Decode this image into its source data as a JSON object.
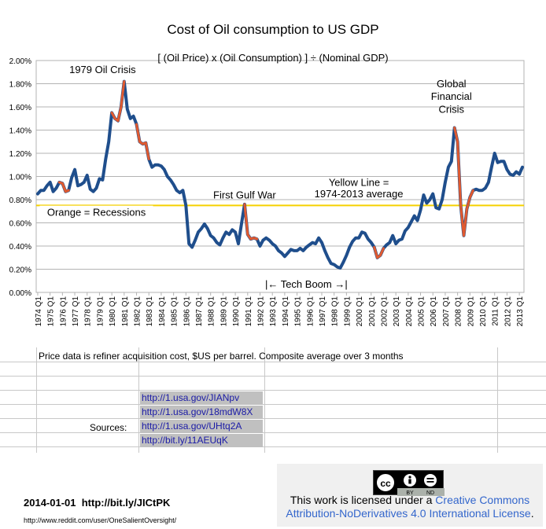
{
  "chart_data": {
    "type": "line",
    "title": "Cost of Oil consumption to US GDP",
    "subtitle": "[ (Oil Price) x (Oil Consumption) ] ÷ (Nominal GDP)",
    "xlabel": "",
    "ylabel": "",
    "ylim": [
      0,
      0.02
    ],
    "ytick_labels": [
      "0.00%",
      "0.20%",
      "0.40%",
      "0.60%",
      "0.80%",
      "1.00%",
      "1.20%",
      "1.40%",
      "1.60%",
      "1.80%",
      "2.00%"
    ],
    "xtick_labels": [
      "1974 Q1",
      "1975 Q1",
      "1976 Q1",
      "1977 Q1",
      "1978 Q1",
      "1979 Q1",
      "1980 Q1",
      "1981 Q1",
      "1982 Q1",
      "1983 Q1",
      "1984 Q1",
      "1985 Q1",
      "1986 Q1",
      "1987 Q1",
      "1988 Q1",
      "1989 Q1",
      "1990 Q1",
      "1991 Q1",
      "1992 Q1",
      "1993 Q1",
      "1994 Q1",
      "1995 Q1",
      "1996 Q1",
      "1997 Q1",
      "1998 Q1",
      "1999 Q1",
      "2000 Q1",
      "2001 Q1",
      "2002 Q1",
      "2003 Q1",
      "2004 Q1",
      "2005 Q1",
      "2006 Q1",
      "2007 Q1",
      "2008 Q1",
      "2009 Q1",
      "2010 Q1",
      "2011 Q1",
      "2012 Q1",
      "2013 Q1"
    ],
    "grid": true,
    "series": [
      {
        "values": [
          0.0085,
          0.0088,
          0.0088,
          0.0092,
          0.0095,
          0.0087,
          0.009,
          0.0095,
          0.0094,
          0.0087,
          0.0088,
          0.0099,
          0.0106,
          0.0092,
          0.0093,
          0.0095,
          0.0101,
          0.0089,
          0.0087,
          0.009,
          0.0098,
          0.0097,
          0.0115,
          0.013,
          0.0155,
          0.015,
          0.0148,
          0.016,
          0.0182,
          0.0158,
          0.015,
          0.0152,
          0.0145,
          0.013,
          0.0128,
          0.0129,
          0.0115,
          0.0108,
          0.011,
          0.011,
          0.0109,
          0.0106,
          0.01,
          0.0097,
          0.0093,
          0.0088,
          0.0086,
          0.0088,
          0.0075,
          0.0042,
          0.0039,
          0.0045,
          0.0052,
          0.0055,
          0.0059,
          0.0055,
          0.0049,
          0.0047,
          0.0043,
          0.0041,
          0.0047,
          0.0052,
          0.005,
          0.0054,
          0.0052,
          0.0042,
          0.0059,
          0.0076,
          0.005,
          0.0046,
          0.0047,
          0.0046,
          0.004,
          0.0045,
          0.0047,
          0.0045,
          0.0042,
          0.004,
          0.0036,
          0.0034,
          0.0031,
          0.0034,
          0.0037,
          0.0036,
          0.0036,
          0.0038,
          0.0036,
          0.0039,
          0.0041,
          0.0043,
          0.0042,
          0.0047,
          0.0043,
          0.0036,
          0.003,
          0.0025,
          0.0024,
          0.0022,
          0.0021,
          0.0026,
          0.0032,
          0.0039,
          0.0044,
          0.0047,
          0.0047,
          0.0052,
          0.0051,
          0.0046,
          0.0043,
          0.0039,
          0.003,
          0.0032,
          0.0038,
          0.0041,
          0.0043,
          0.0049,
          0.0042,
          0.0045,
          0.0046,
          0.0053,
          0.0056,
          0.0061,
          0.0066,
          0.0062,
          0.0071,
          0.0084,
          0.0077,
          0.008,
          0.0085,
          0.0073,
          0.0072,
          0.008,
          0.0095,
          0.0108,
          0.0113,
          0.0142,
          0.013,
          0.0075,
          0.0049,
          0.0072,
          0.0082,
          0.0088,
          0.0089,
          0.0088,
          0.0088,
          0.009,
          0.0095,
          0.0108,
          0.012,
          0.0112,
          0.0113,
          0.0113,
          0.0106,
          0.0102,
          0.0101,
          0.0104,
          0.0102,
          0.0108
        ],
        "color": "#1f4e8c"
      }
    ],
    "recession_segments": [
      [
        7,
        10
      ],
      [
        24,
        28
      ],
      [
        32,
        36
      ],
      [
        67,
        71
      ],
      [
        109,
        112
      ],
      [
        135,
        141
      ]
    ],
    "recession_color": "#e05a30",
    "reference_line": {
      "value": 0.0075,
      "color": "#f5d000"
    },
    "annotations": [
      {
        "text": "1979 Oil Crisis",
        "x": 21,
        "y": 0.0189
      },
      {
        "text": "First Gulf War",
        "x": 67,
        "y": 0.0081
      },
      {
        "text": "Global",
        "x": 134,
        "y": 0.0177
      },
      {
        "text": "Financial",
        "x": 134,
        "y": 0.0166
      },
      {
        "text": "Crisis",
        "x": 134,
        "y": 0.0155
      },
      {
        "text": "Yellow Line =",
        "x": 104,
        "y": 0.0092
      },
      {
        "text": "1974-2013 average",
        "x": 104,
        "y": 0.0082
      },
      {
        "text": "Orange = Recessions",
        "x": 19,
        "y": 0.0066
      },
      {
        "text": "|← Tech Boom →|",
        "x": 87,
        "y": 0.0004
      }
    ]
  },
  "notes": {
    "price_note": "Price data is refiner acquisition cost, $US per barrel. Composite average over 3 months",
    "sources_label": "Sources:",
    "links": [
      "http://1.usa.gov/JIANpv",
      "http://1.usa.gov/18mdW8X",
      "http://1.usa.gov/UHtq2A",
      "http://bit.ly/11AEUqK"
    ]
  },
  "footer": {
    "date_link": "2014-01-01  http://bit.ly/JICtPK",
    "reddit": "http://www.reddit.com/user/OneSalientOversight/"
  },
  "license": {
    "badge_labels": [
      "BY",
      "ND"
    ],
    "text_prefix": "This work is licensed under a ",
    "link_part1": "Creative Commons",
    "link_part2": "Attribution-NoDerivatives 4.0 International License",
    "text_suffix": "."
  }
}
